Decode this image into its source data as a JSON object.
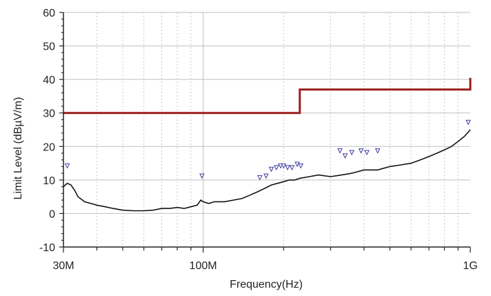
{
  "chart_data": {
    "type": "line",
    "title": "",
    "xlabel": "Frequency(Hz)",
    "ylabel": "Limit Level (dBµV/m)",
    "x_scale": "log",
    "xlim": [
      30000000,
      1000000000
    ],
    "ylim": [
      -10,
      60
    ],
    "grid": true,
    "legend": "none",
    "x_ticks": [
      {
        "value": 30000000,
        "label": "30M"
      },
      {
        "value": 100000000,
        "label": "100M"
      },
      {
        "value": 1000000000,
        "label": "1G"
      }
    ],
    "y_ticks": [
      {
        "value": -10,
        "label": "-10"
      },
      {
        "value": 0,
        "label": "0"
      },
      {
        "value": 10,
        "label": "10"
      },
      {
        "value": 20,
        "label": "20"
      },
      {
        "value": 30,
        "label": "30"
      },
      {
        "value": 40,
        "label": "40"
      },
      {
        "value": 50,
        "label": "50"
      },
      {
        "value": 60,
        "label": "60"
      }
    ],
    "colors": {
      "limit_line": "#9b1b1b",
      "measurement": "#111111",
      "marker": "#3b3b9c",
      "major_grid": "#bfbfbf",
      "minor_grid": "#c8c8c8",
      "axis": "#222222"
    },
    "series": [
      {
        "role": "limit",
        "x": [
          30000000,
          230000000,
          230000000,
          1000000000,
          1000000000
        ],
        "y": [
          30,
          30,
          37,
          37,
          40.5
        ]
      },
      {
        "role": "measurement",
        "x": [
          30000000,
          31000000,
          32000000,
          33000000,
          34000000,
          36000000,
          38000000,
          40000000,
          43000000,
          46000000,
          50000000,
          55000000,
          60000000,
          65000000,
          70000000,
          75000000,
          80000000,
          85000000,
          90000000,
          95000000,
          98000000,
          100000000,
          105000000,
          110000000,
          115000000,
          120000000,
          130000000,
          140000000,
          150000000,
          160000000,
          170000000,
          180000000,
          190000000,
          200000000,
          210000000,
          220000000,
          230000000,
          250000000,
          270000000,
          300000000,
          330000000,
          360000000,
          400000000,
          450000000,
          500000000,
          550000000,
          600000000,
          650000000,
          700000000,
          750000000,
          800000000,
          850000000,
          900000000,
          950000000,
          1000000000
        ],
        "y": [
          8,
          9,
          8.5,
          7,
          5,
          3.5,
          3,
          2.5,
          2,
          1.5,
          1,
          0.8,
          0.8,
          1,
          1.5,
          1.5,
          1.8,
          1.5,
          2,
          2.5,
          4,
          3.5,
          3,
          3.5,
          3.5,
          3.5,
          4,
          4.5,
          5.5,
          6.5,
          7.5,
          8.5,
          9,
          9.5,
          10,
          10,
          10.5,
          11,
          11.5,
          11,
          11.5,
          12,
          13,
          13,
          14,
          14.5,
          15,
          16,
          17,
          18,
          19,
          20,
          21.5,
          23,
          25
        ]
      }
    ],
    "markers": [
      {
        "x": 31000000,
        "y": 14
      },
      {
        "x": 99000000,
        "y": 11
      },
      {
        "x": 163000000,
        "y": 10.5
      },
      {
        "x": 172000000,
        "y": 11
      },
      {
        "x": 180000000,
        "y": 13
      },
      {
        "x": 188000000,
        "y": 13.5
      },
      {
        "x": 195000000,
        "y": 14
      },
      {
        "x": 200000000,
        "y": 14
      },
      {
        "x": 207000000,
        "y": 13.5
      },
      {
        "x": 215000000,
        "y": 13.5
      },
      {
        "x": 225000000,
        "y": 14.5
      },
      {
        "x": 232000000,
        "y": 14
      },
      {
        "x": 325000000,
        "y": 18.5
      },
      {
        "x": 340000000,
        "y": 17
      },
      {
        "x": 360000000,
        "y": 18
      },
      {
        "x": 390000000,
        "y": 18.5
      },
      {
        "x": 410000000,
        "y": 18
      },
      {
        "x": 450000000,
        "y": 18.5
      },
      {
        "x": 1000000000,
        "y": 27
      }
    ]
  }
}
